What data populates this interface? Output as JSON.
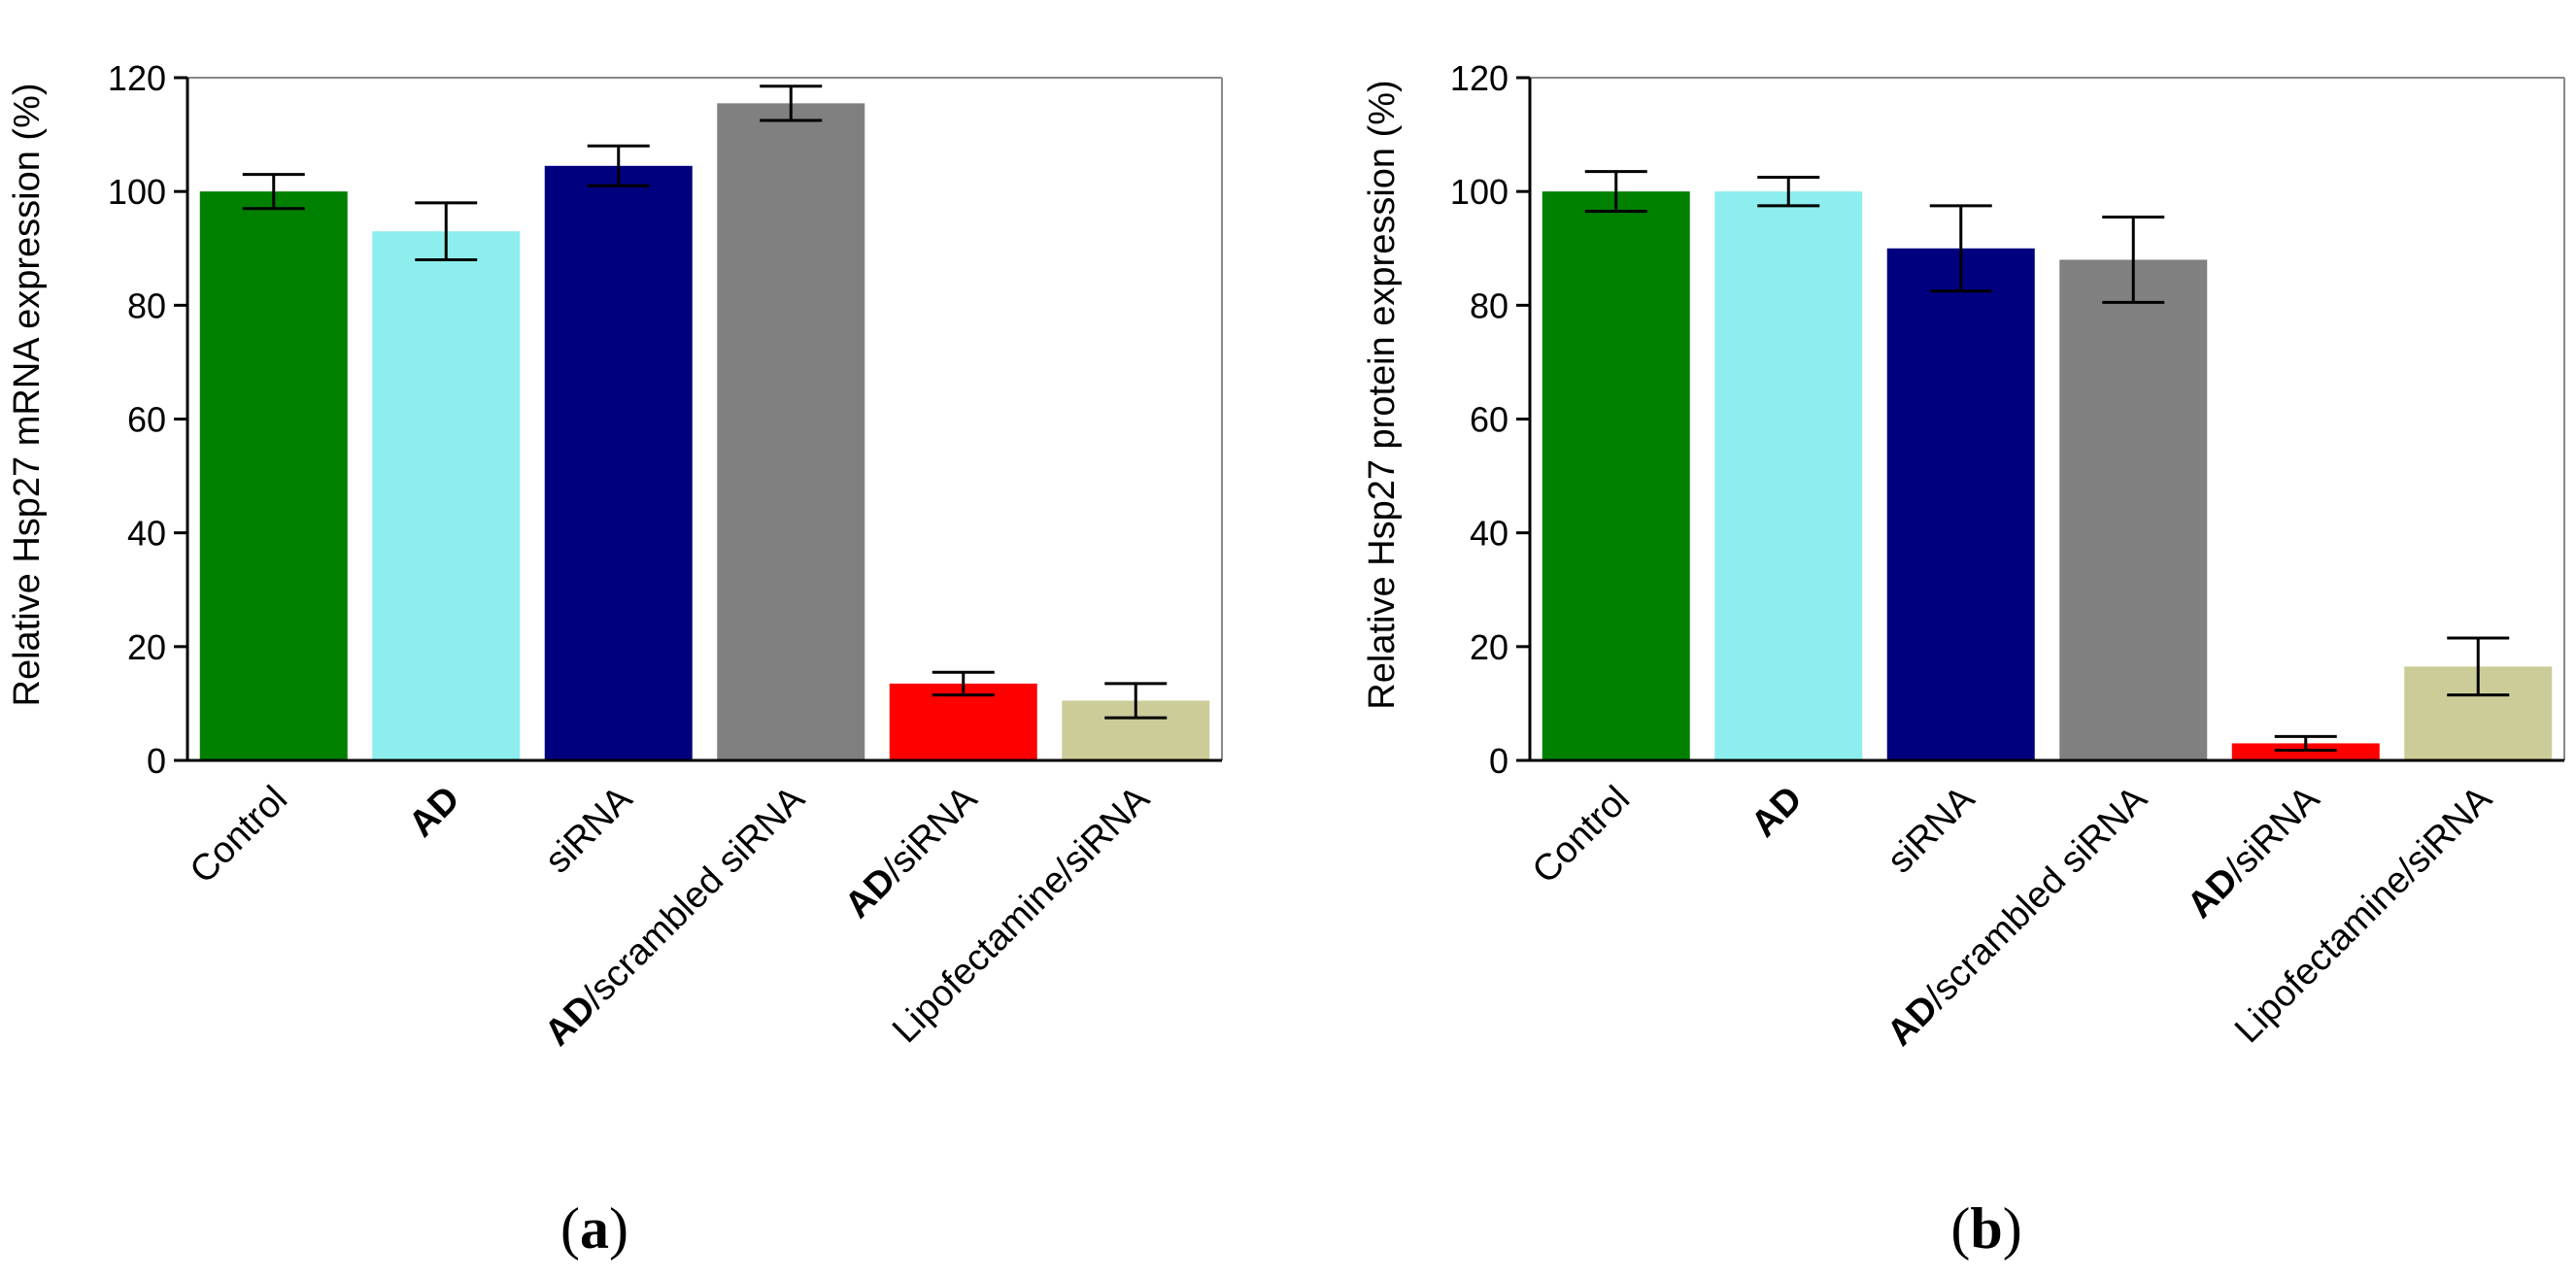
{
  "colors": {
    "Control": "#008000",
    "AD": "#8EEEEE",
    "siRNA": "#00007F",
    "AD/scrambled siRNA": "#808080",
    "AD/siRNA": "#FF0000",
    "Lipofectamine/siRNA": "#CCCC99"
  },
  "chart_data": [
    {
      "type": "bar",
      "panel_label": {
        "open": "(",
        "letter": "a",
        "close": ")"
      },
      "ylabel": "Relative Hsp27 mRNA expression (%)",
      "ylim": [
        0,
        120
      ],
      "yticks": [
        0,
        20,
        40,
        60,
        80,
        100,
        120
      ],
      "categories": [
        {
          "bold": "",
          "rest": "Control"
        },
        {
          "bold": "AD",
          "rest": ""
        },
        {
          "bold": "",
          "rest": "siRNA"
        },
        {
          "bold": "AD",
          "rest": "/scrambled siRNA"
        },
        {
          "bold": "AD",
          "rest": "/siRNA"
        },
        {
          "bold": "",
          "rest": "Lipofectamine/siRNA"
        }
      ],
      "color_keys": [
        "Control",
        "AD",
        "siRNA",
        "AD/scrambled siRNA",
        "AD/siRNA",
        "Lipofectamine/siRNA"
      ],
      "values": [
        100,
        93,
        104.5,
        115.5,
        13.5,
        10.5
      ],
      "errors": [
        3,
        5,
        3.5,
        3,
        2,
        3
      ]
    },
    {
      "type": "bar",
      "panel_label": {
        "open": "(",
        "letter": "b",
        "close": ")"
      },
      "ylabel": "Relative Hsp27 protein expression (%)",
      "ylim": [
        0,
        120
      ],
      "yticks": [
        0,
        20,
        40,
        60,
        80,
        100,
        120
      ],
      "categories": [
        {
          "bold": "",
          "rest": "Control"
        },
        {
          "bold": "AD",
          "rest": ""
        },
        {
          "bold": "",
          "rest": "siRNA"
        },
        {
          "bold": "AD",
          "rest": "/scrambled siRNA"
        },
        {
          "bold": "AD",
          "rest": "/siRNA"
        },
        {
          "bold": "",
          "rest": "Lipofectamine/siRNA"
        }
      ],
      "color_keys": [
        "Control",
        "AD",
        "siRNA",
        "AD/scrambled siRNA",
        "AD/siRNA",
        "Lipofectamine/siRNA"
      ],
      "values": [
        100,
        100,
        90,
        88,
        3,
        16.5
      ],
      "errors": [
        3.5,
        2.5,
        7.5,
        7.5,
        1.2,
        5
      ]
    }
  ]
}
